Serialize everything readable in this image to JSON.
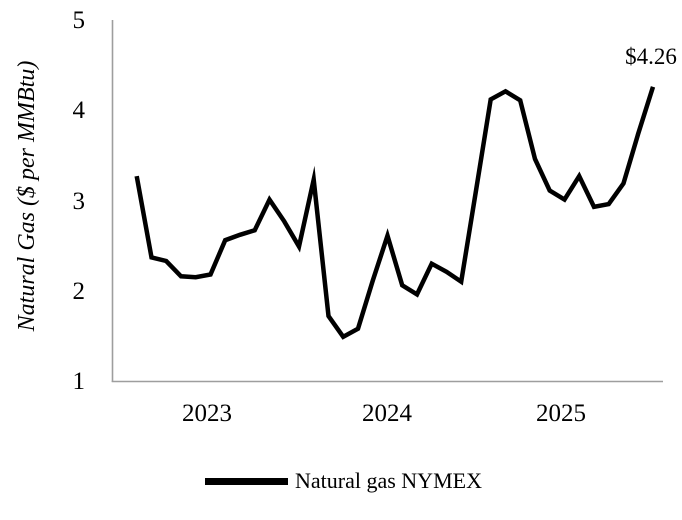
{
  "chart_data": {
    "type": "line",
    "title": "",
    "xlabel": "",
    "ylabel": "Natural Gas ($ per MMBtu)",
    "ylim": [
      1,
      5
    ],
    "ytick_labels": [
      "5",
      "4",
      "3",
      "2",
      "1"
    ],
    "xtick_labels": [
      "2023",
      "2024",
      "2025"
    ],
    "grid": false,
    "legend_position": "bottom-center",
    "line_color": "#000000",
    "axis_color": "#9e9e9e",
    "annotation": {
      "text": "$4.26",
      "attached_to": "last-point"
    },
    "x": [
      "2023-01",
      "2023-02",
      "2023-03",
      "2023-04",
      "2023-05",
      "2023-06",
      "2023-07",
      "2023-08",
      "2023-09",
      "2023-10",
      "2023-11",
      "2023-12",
      "2024-01",
      "2024-02",
      "2024-03",
      "2024-04",
      "2024-05",
      "2024-06",
      "2024-07",
      "2024-08",
      "2024-09",
      "2024-10",
      "2024-11",
      "2024-12",
      "2025-01",
      "2025-02",
      "2025-03",
      "2025-04",
      "2025-05",
      "2025-06",
      "2025-07",
      "2025-08",
      "2025-09",
      "2025-10",
      "2025-11",
      "2025-12"
    ],
    "series": [
      {
        "name": "Natural gas NYMEX",
        "values": [
          3.27,
          2.37,
          2.33,
          2.16,
          2.15,
          2.18,
          2.56,
          2.62,
          2.67,
          3.01,
          2.77,
          2.49,
          3.23,
          1.72,
          1.49,
          1.58,
          2.11,
          2.61,
          2.06,
          1.96,
          2.3,
          2.21,
          2.1,
          3.11,
          4.12,
          4.21,
          4.11,
          3.46,
          3.11,
          3.01,
          3.27,
          2.93,
          2.96,
          3.19,
          3.74,
          4.26
        ]
      }
    ]
  }
}
